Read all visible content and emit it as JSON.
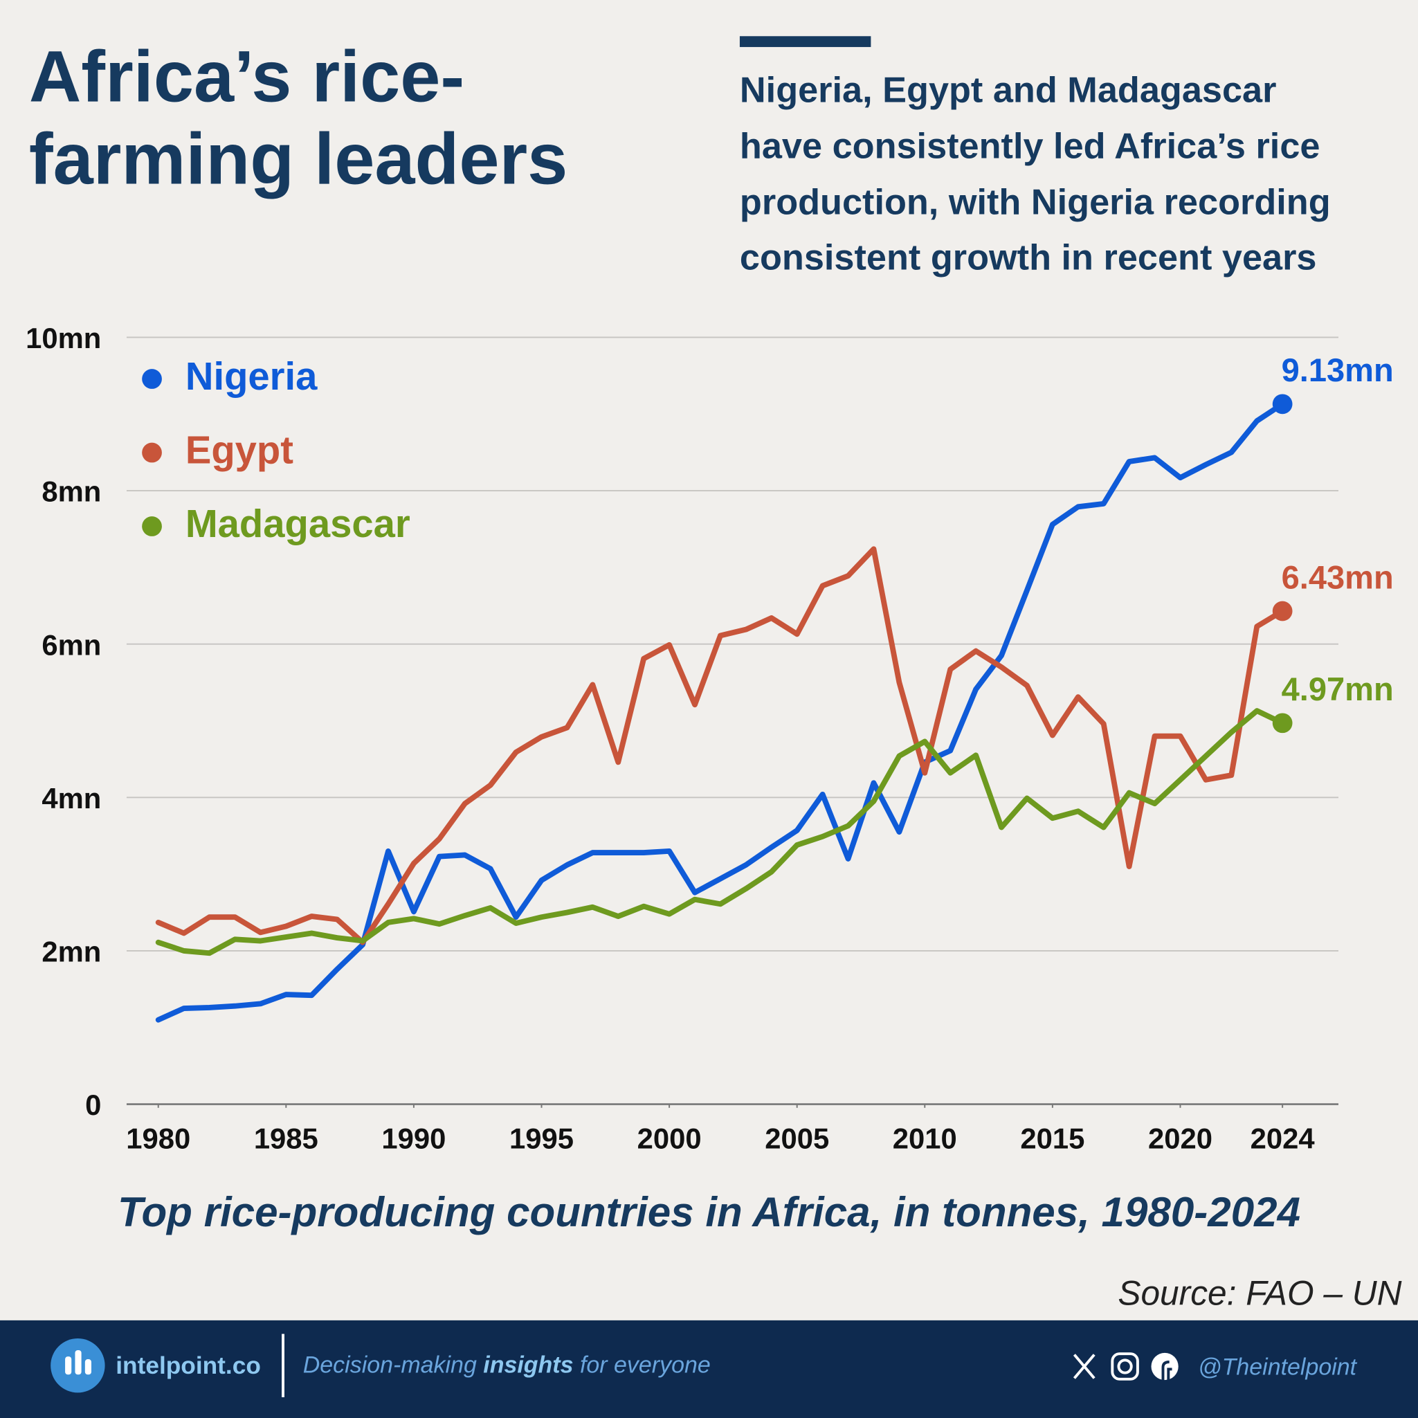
{
  "chart_data": {
    "type": "line",
    "title": [
      "Africa’s rice-",
      "farming leaders"
    ],
    "subtitle": [
      "Nigeria, Egypt and Madagascar",
      "have consistently led Africa’s rice",
      "production, with Nigeria recording",
      "consistent growth in recent years"
    ],
    "caption": "Top rice-producing countries in Africa, in tonnes, 1980-2024",
    "source": "Source: FAO – UN",
    "x": [
      1980,
      1981,
      1982,
      1983,
      1984,
      1985,
      1986,
      1987,
      1988,
      1989,
      1990,
      1991,
      1992,
      1993,
      1994,
      1995,
      1996,
      1997,
      1998,
      1999,
      2000,
      2001,
      2002,
      2003,
      2004,
      2005,
      2006,
      2007,
      2008,
      2009,
      2010,
      2011,
      2012,
      2013,
      2014,
      2015,
      2016,
      2017,
      2018,
      2019,
      2020,
      2021,
      2022,
      2023,
      2024
    ],
    "xlim": [
      1978.76,
      2026.19
    ],
    "xticks": [
      1980,
      1985,
      1990,
      1995,
      2000,
      2005,
      2010,
      2015,
      2020,
      2024
    ],
    "ylim": [
      0,
      10
    ],
    "yticks": [
      0,
      {
        "value": 2,
        "label": "2mn"
      },
      {
        "value": 4,
        "label": "4mn"
      },
      {
        "value": 6,
        "label": "6mn"
      },
      {
        "value": 8,
        "label": "8mn"
      },
      {
        "value": 10,
        "label": "10mn"
      }
    ],
    "grid": true,
    "legend": "top-left",
    "series": [
      {
        "name": "Nigeria",
        "color": "#0f5bd8",
        "values": [
          1.1,
          1.25,
          1.26,
          1.28,
          1.31,
          1.43,
          1.42,
          1.76,
          2.08,
          3.3,
          2.51,
          3.23,
          3.25,
          3.07,
          2.44,
          2.92,
          3.12,
          3.28,
          3.28,
          3.28,
          3.3,
          2.76,
          2.94,
          3.12,
          3.35,
          3.57,
          4.04,
          3.2,
          4.19,
          3.55,
          4.46,
          4.61,
          5.41,
          5.85,
          6.7,
          7.56,
          7.79,
          7.83,
          8.38,
          8.43,
          8.17,
          8.34,
          8.5,
          8.91,
          9.13
        ],
        "value_labels": [
          null,
          null,
          null,
          null,
          null,
          null,
          null,
          null,
          null,
          null,
          null,
          null,
          null,
          null,
          null,
          null,
          null,
          null,
          null,
          null,
          null,
          null,
          null,
          null,
          null,
          null,
          null,
          null,
          null,
          null,
          null,
          null,
          null,
          null,
          null,
          null,
          null,
          null,
          null,
          null,
          null,
          null,
          null,
          null,
          "9.13mn"
        ]
      },
      {
        "name": "Egypt",
        "color": "#c8553a",
        "values": [
          2.37,
          2.23,
          2.44,
          2.44,
          2.24,
          2.32,
          2.45,
          2.41,
          2.11,
          2.61,
          3.14,
          3.46,
          3.92,
          4.16,
          4.59,
          4.79,
          4.91,
          5.47,
          4.46,
          5.81,
          5.99,
          5.21,
          6.11,
          6.19,
          6.34,
          6.13,
          6.76,
          6.89,
          7.24,
          5.5,
          4.32,
          5.67,
          5.91,
          5.7,
          5.46,
          4.81,
          5.31,
          4.96,
          3.1,
          4.8,
          4.8,
          4.23,
          4.29,
          6.23,
          6.43
        ],
        "value_labels": [
          null,
          null,
          null,
          null,
          null,
          null,
          null,
          null,
          null,
          null,
          null,
          null,
          null,
          null,
          null,
          null,
          null,
          null,
          null,
          null,
          null,
          null,
          null,
          null,
          null,
          null,
          null,
          null,
          null,
          null,
          null,
          null,
          null,
          null,
          null,
          null,
          null,
          null,
          null,
          null,
          null,
          null,
          null,
          null,
          "6.43mn"
        ]
      },
      {
        "name": "Madagascar",
        "color": "#6e9a1f",
        "values": [
          2.11,
          2.0,
          1.97,
          2.15,
          2.13,
          2.18,
          2.23,
          2.17,
          2.13,
          2.37,
          2.42,
          2.35,
          2.46,
          2.56,
          2.36,
          2.44,
          2.5,
          2.57,
          2.45,
          2.58,
          2.48,
          2.67,
          2.61,
          2.81,
          3.03,
          3.38,
          3.49,
          3.63,
          3.95,
          4.54,
          4.73,
          4.32,
          4.55,
          3.61,
          3.99,
          3.73,
          3.82,
          3.61,
          4.06,
          3.92,
          4.23,
          4.54,
          4.85,
          5.13,
          4.97
        ],
        "value_labels": [
          null,
          null,
          null,
          null,
          null,
          null,
          null,
          null,
          null,
          null,
          null,
          null,
          null,
          null,
          null,
          null,
          null,
          null,
          null,
          null,
          null,
          null,
          null,
          null,
          null,
          null,
          null,
          null,
          null,
          null,
          null,
          null,
          null,
          null,
          null,
          null,
          null,
          null,
          null,
          null,
          null,
          null,
          null,
          null,
          "4.97mn"
        ]
      }
    ]
  },
  "footer": {
    "brand": "intelpoint.co",
    "tagline": [
      "Decision-making ",
      "insights",
      " for everyone"
    ],
    "handle": "@Theintelpoint"
  }
}
